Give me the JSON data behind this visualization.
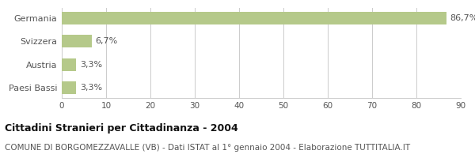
{
  "categories": [
    "Paesi Bassi",
    "Austria",
    "Svizzera",
    "Germania"
  ],
  "values": [
    3.3,
    3.3,
    6.7,
    86.7
  ],
  "labels": [
    "3,3%",
    "3,3%",
    "6,7%",
    "86,7%"
  ],
  "bar_color": "#b5c98a",
  "xlim": [
    0,
    90
  ],
  "xticks": [
    0,
    10,
    20,
    30,
    40,
    50,
    60,
    70,
    80,
    90
  ],
  "title": "Cittadini Stranieri per Cittadinanza - 2004",
  "subtitle": "COMUNE DI BORGOMEZZAVALLE (VB) - Dati ISTAT al 1° gennaio 2004 - Elaborazione TUTTITALIA.IT",
  "title_fontsize": 9,
  "subtitle_fontsize": 7.5,
  "label_fontsize": 8,
  "tick_fontsize": 7.5,
  "category_fontsize": 8,
  "background_color": "#ffffff",
  "grid_color": "#cccccc",
  "text_color": "#555555",
  "title_color": "#111111"
}
